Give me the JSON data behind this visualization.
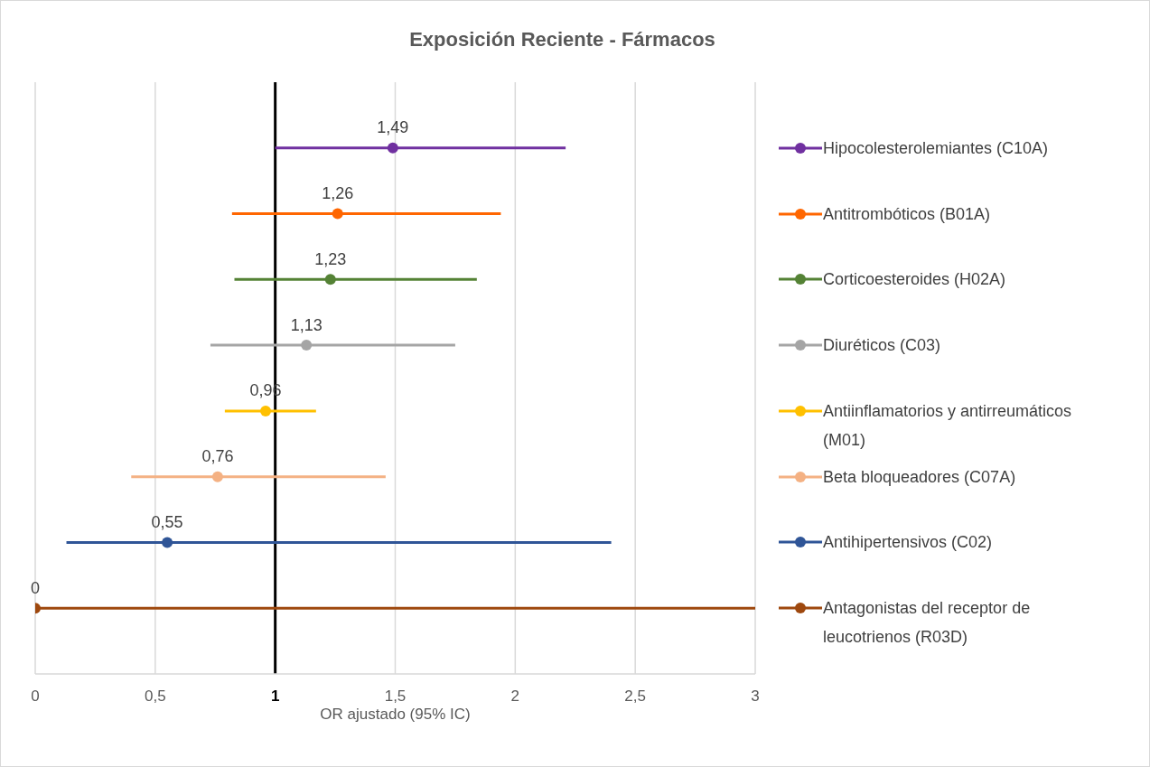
{
  "chart_data": {
    "type": "scatter",
    "title": "Exposición Reciente - Fármacos",
    "xlabel": "OR ajustado  (95% IC)",
    "orientation": "horizontal",
    "categories": [
      null,
      null,
      null,
      null,
      null,
      null,
      null,
      null
    ],
    "series": [
      {
        "name": "Hipocolesterolemiantes (C10A)",
        "color": "#7030a0",
        "values": [
          1.49,
          null,
          null,
          null,
          null,
          null,
          null,
          null
        ],
        "errors": [
          [
            1.0,
            2.21
          ],
          null,
          null,
          null,
          null,
          null,
          null,
          null
        ],
        "value_labels": [
          "1,49",
          null,
          null,
          null,
          null,
          null,
          null,
          null
        ]
      },
      {
        "name": "Antitrombóticos (B01A)",
        "color": "#ff6600",
        "values": [
          null,
          1.26,
          null,
          null,
          null,
          null,
          null,
          null
        ],
        "errors": [
          null,
          [
            0.82,
            1.94
          ],
          null,
          null,
          null,
          null,
          null,
          null
        ],
        "value_labels": [
          null,
          "1,26",
          null,
          null,
          null,
          null,
          null,
          null
        ]
      },
      {
        "name": "Corticoesteroides (H02A)",
        "color": "#548235",
        "values": [
          null,
          null,
          1.23,
          null,
          null,
          null,
          null,
          null
        ],
        "errors": [
          null,
          null,
          [
            0.83,
            1.84
          ],
          null,
          null,
          null,
          null,
          null
        ],
        "value_labels": [
          null,
          null,
          "1,23",
          null,
          null,
          null,
          null,
          null
        ]
      },
      {
        "name": "Diuréticos (C03)",
        "color": "#a5a5a5",
        "values": [
          null,
          null,
          null,
          1.13,
          null,
          null,
          null,
          null
        ],
        "errors": [
          null,
          null,
          null,
          [
            0.73,
            1.75
          ],
          null,
          null,
          null,
          null
        ],
        "value_labels": [
          null,
          null,
          null,
          "1,13",
          null,
          null,
          null,
          null
        ]
      },
      {
        "name": "Antiinflamatorios y antirreumáticos (M01)",
        "color": "#ffc000",
        "values": [
          null,
          null,
          null,
          null,
          0.96,
          null,
          null,
          null
        ],
        "errors": [
          null,
          null,
          null,
          null,
          [
            0.79,
            1.17
          ],
          null,
          null,
          null
        ],
        "value_labels": [
          null,
          null,
          null,
          null,
          "0,96",
          null,
          null,
          null
        ]
      },
      {
        "name": "Beta bloqueadores (C07A)",
        "color": "#f4b183",
        "values": [
          null,
          null,
          null,
          null,
          null,
          0.76,
          null,
          null
        ],
        "errors": [
          null,
          null,
          null,
          null,
          null,
          [
            0.4,
            1.46
          ],
          null,
          null
        ],
        "value_labels": [
          null,
          null,
          null,
          null,
          null,
          "0,76",
          null,
          null
        ]
      },
      {
        "name": "Antihipertensivos (C02)",
        "color": "#2f5597",
        "values": [
          null,
          null,
          null,
          null,
          null,
          null,
          0.55,
          null
        ],
        "errors": [
          null,
          null,
          null,
          null,
          null,
          null,
          [
            0.13,
            2.4
          ],
          null
        ],
        "value_labels": [
          null,
          null,
          null,
          null,
          null,
          null,
          "0,55",
          null
        ]
      },
      {
        "name": "Antagonistas del receptor de leucotrienos (R03D)",
        "color": "#9e480e",
        "values": [
          null,
          null,
          null,
          null,
          null,
          null,
          null,
          0
        ],
        "errors": [
          null,
          null,
          null,
          null,
          null,
          null,
          null,
          [
            0,
            3
          ]
        ],
        "value_labels": [
          null,
          null,
          null,
          null,
          null,
          null,
          null,
          "0"
        ]
      }
    ],
    "xlim": [
      0,
      3
    ],
    "xticks": [
      0,
      {
        "value": 0.5,
        "label": "0,5"
      },
      1,
      {
        "value": 1.5,
        "label": "1,5"
      },
      2,
      {
        "value": 2.5,
        "label": "2,5"
      },
      3
    ],
    "ref_lines": [
      {
        "axis": "x",
        "value": 1,
        "color": "#000000"
      }
    ],
    "grid": "x",
    "legend": "right",
    "marker": "circle",
    "tick_labels": "x"
  }
}
